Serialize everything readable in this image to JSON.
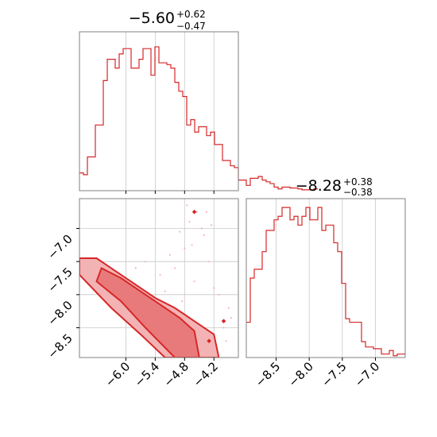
{
  "colors": {
    "series": "#d62728",
    "grid": "#c8c8c8",
    "axis": "#808080"
  },
  "chart_data": [
    {
      "type": "step-histogram",
      "panel": "top-left",
      "title": {
        "median": "−5.60",
        "plus": "+0.62",
        "minus": "−0.47"
      },
      "xlim": [
        -6.95,
        -3.7
      ],
      "grid": true,
      "bins": {
        "x0": -6.95,
        "width": 0.08125
      },
      "values": [
        0.1,
        0.09,
        0.19,
        0.19,
        0.37,
        0.37,
        0.62,
        0.74,
        0.74,
        0.69,
        0.77,
        0.8,
        0.8,
        0.69,
        0.69,
        0.74,
        0.8,
        0.8,
        0.65,
        0.81,
        0.72,
        0.72,
        0.71,
        0.69,
        0.61,
        0.56,
        0.53,
        0.37,
        0.4,
        0.33,
        0.36,
        0.36,
        0.31,
        0.33,
        0.26,
        0.26,
        0.17,
        0.17,
        0.14,
        0.13,
        0.06,
        0.06,
        0.03,
        0.07,
        0.07,
        0.08,
        0.06,
        0.05,
        0.04,
        0.02,
        0.01,
        0.02,
        0.02,
        0.015,
        0.015,
        0.01,
        0.005,
        0.005,
        0.005,
        0.01
      ]
    },
    {
      "type": "contour-2d",
      "panel": "bottom-left",
      "xlim": [
        -6.95,
        -3.7
      ],
      "ylim": [
        -8.95,
        -6.55
      ],
      "x_ticks": [
        "−6.0",
        "−5.4",
        "−4.8",
        "−4.2"
      ],
      "x_tick_values": [
        -6.0,
        -5.4,
        -4.8,
        -4.2
      ],
      "y_ticks": [
        "−7.0",
        "−7.5",
        "−8.0",
        "−8.5"
      ],
      "y_tick_values": [
        -7.0,
        -7.5,
        -8.0,
        -8.5
      ],
      "grid": true,
      "outer_contour": [
        [
          -6.95,
          -7.45
        ],
        [
          -6.6,
          -7.45
        ],
        [
          -6.2,
          -7.65
        ],
        [
          -5.8,
          -7.85
        ],
        [
          -5.4,
          -8.05
        ],
        [
          -5.0,
          -8.2
        ],
        [
          -4.6,
          -8.4
        ],
        [
          -4.2,
          -8.6
        ],
        [
          -4.1,
          -8.95
        ],
        [
          -5.2,
          -8.95
        ],
        [
          -5.7,
          -8.6
        ],
        [
          -6.3,
          -8.2
        ],
        [
          -6.95,
          -7.7
        ]
      ],
      "inner_contour": [
        [
          -6.5,
          -7.6
        ],
        [
          -6.1,
          -7.75
        ],
        [
          -5.7,
          -7.95
        ],
        [
          -5.3,
          -8.15
        ],
        [
          -4.9,
          -8.35
        ],
        [
          -4.6,
          -8.55
        ],
        [
          -4.5,
          -8.95
        ],
        [
          -5.0,
          -8.95
        ],
        [
          -5.6,
          -8.5
        ],
        [
          -6.1,
          -8.1
        ],
        [
          -6.6,
          -7.8
        ]
      ],
      "scatter": [
        [
          -4.55,
          -6.75
        ],
        [
          -4.7,
          -6.9
        ],
        [
          -4.4,
          -7.1
        ],
        [
          -4.8,
          -7.3
        ],
        [
          -4.3,
          -7.5
        ],
        [
          -5.0,
          -7.6
        ],
        [
          -4.6,
          -7.8
        ],
        [
          -4.2,
          -7.9
        ],
        [
          -5.3,
          -7.7
        ],
        [
          -3.9,
          -8.2
        ],
        [
          -4.0,
          -8.5
        ],
        [
          -4.45,
          -7.0
        ],
        [
          -4.9,
          -7.05
        ],
        [
          -5.1,
          -7.4
        ],
        [
          -4.75,
          -6.65
        ],
        [
          -4.35,
          -6.75
        ],
        [
          -3.95,
          -8.7
        ],
        [
          -5.6,
          -7.5
        ],
        [
          -5.8,
          -7.6
        ],
        [
          -4.1,
          -8.0
        ],
        [
          -4.25,
          -6.95
        ],
        [
          -4.65,
          -7.25
        ],
        [
          -5.2,
          -7.95
        ],
        [
          -3.85,
          -8.35
        ],
        [
          -4.85,
          -8.1
        ]
      ],
      "outlier_points": [
        [
          -4.6,
          -6.75
        ],
        [
          -4.0,
          -8.4
        ],
        [
          -4.3,
          -8.7
        ]
      ]
    },
    {
      "type": "step-histogram",
      "panel": "bottom-right",
      "title": {
        "median": "−8.28",
        "plus": "+0.38",
        "minus": "−0.38"
      },
      "xlim": [
        -8.95,
        -6.55
      ],
      "x_ticks": [
        "−8.5",
        "−8.0",
        "−7.5",
        "−7.0"
      ],
      "x_tick_values": [
        -8.5,
        -8.0,
        -7.5,
        -7.0
      ],
      "grid": true,
      "bins": {
        "x0": -8.95,
        "width": 0.06
      },
      "values": [
        0.2,
        0.45,
        0.5,
        0.5,
        0.6,
        0.72,
        0.72,
        0.78,
        0.8,
        0.85,
        0.85,
        0.78,
        0.8,
        0.75,
        0.8,
        0.85,
        0.78,
        0.78,
        0.85,
        0.72,
        0.75,
        0.75,
        0.65,
        0.6,
        0.42,
        0.22,
        0.2,
        0.2,
        0.2,
        0.09,
        0.06,
        0.06,
        0.05,
        0.05,
        0.02,
        0.02,
        0.04,
        0.01,
        0.02,
        0.02
      ]
    }
  ]
}
